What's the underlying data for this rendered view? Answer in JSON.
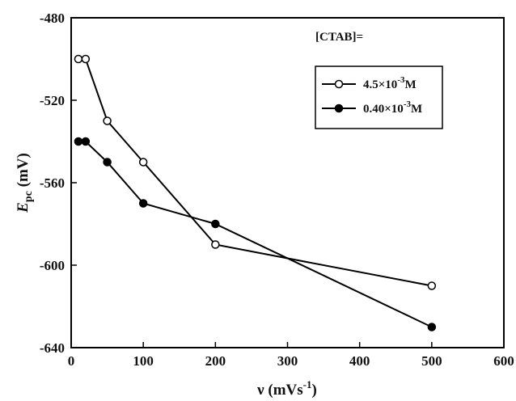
{
  "chart_data": {
    "type": "scatter",
    "xlabel": "ν (mVs⁻¹)",
    "ylabel": "Epc (mV)",
    "ylabel_main": "E",
    "ylabel_sub": "pc",
    "ylabel_rest": " (mV)",
    "xlabel_main": "ν (mVs",
    "xlabel_sup": "-1",
    "xlabel_end": ")",
    "xlim": [
      0,
      600
    ],
    "ylim": [
      -640,
      -480
    ],
    "xticks": [
      0,
      100,
      200,
      300,
      400,
      500,
      600
    ],
    "yticks": [
      -480,
      -520,
      -560,
      -600,
      -640
    ],
    "legend_title": "[CTAB]=",
    "legend_position": "top-right",
    "grid": false,
    "series": [
      {
        "name": "4.5×10⁻³M",
        "label_main": "4.5×10",
        "label_sup": "-3",
        "label_end": "M",
        "marker": "open-circle",
        "color": "#000000",
        "x": [
          10,
          20,
          50,
          100,
          200,
          500
        ],
        "y": [
          -500,
          -500,
          -530,
          -550,
          -590,
          -610
        ]
      },
      {
        "name": "0.40×10⁻³M",
        "label_main": "0.40×10",
        "label_sup": "-3",
        "label_end": "M",
        "marker": "filled-circle",
        "color": "#000000",
        "x": [
          10,
          20,
          50,
          100,
          200,
          500
        ],
        "y": [
          -540,
          -540,
          -550,
          -570,
          -580,
          -630
        ]
      }
    ]
  }
}
